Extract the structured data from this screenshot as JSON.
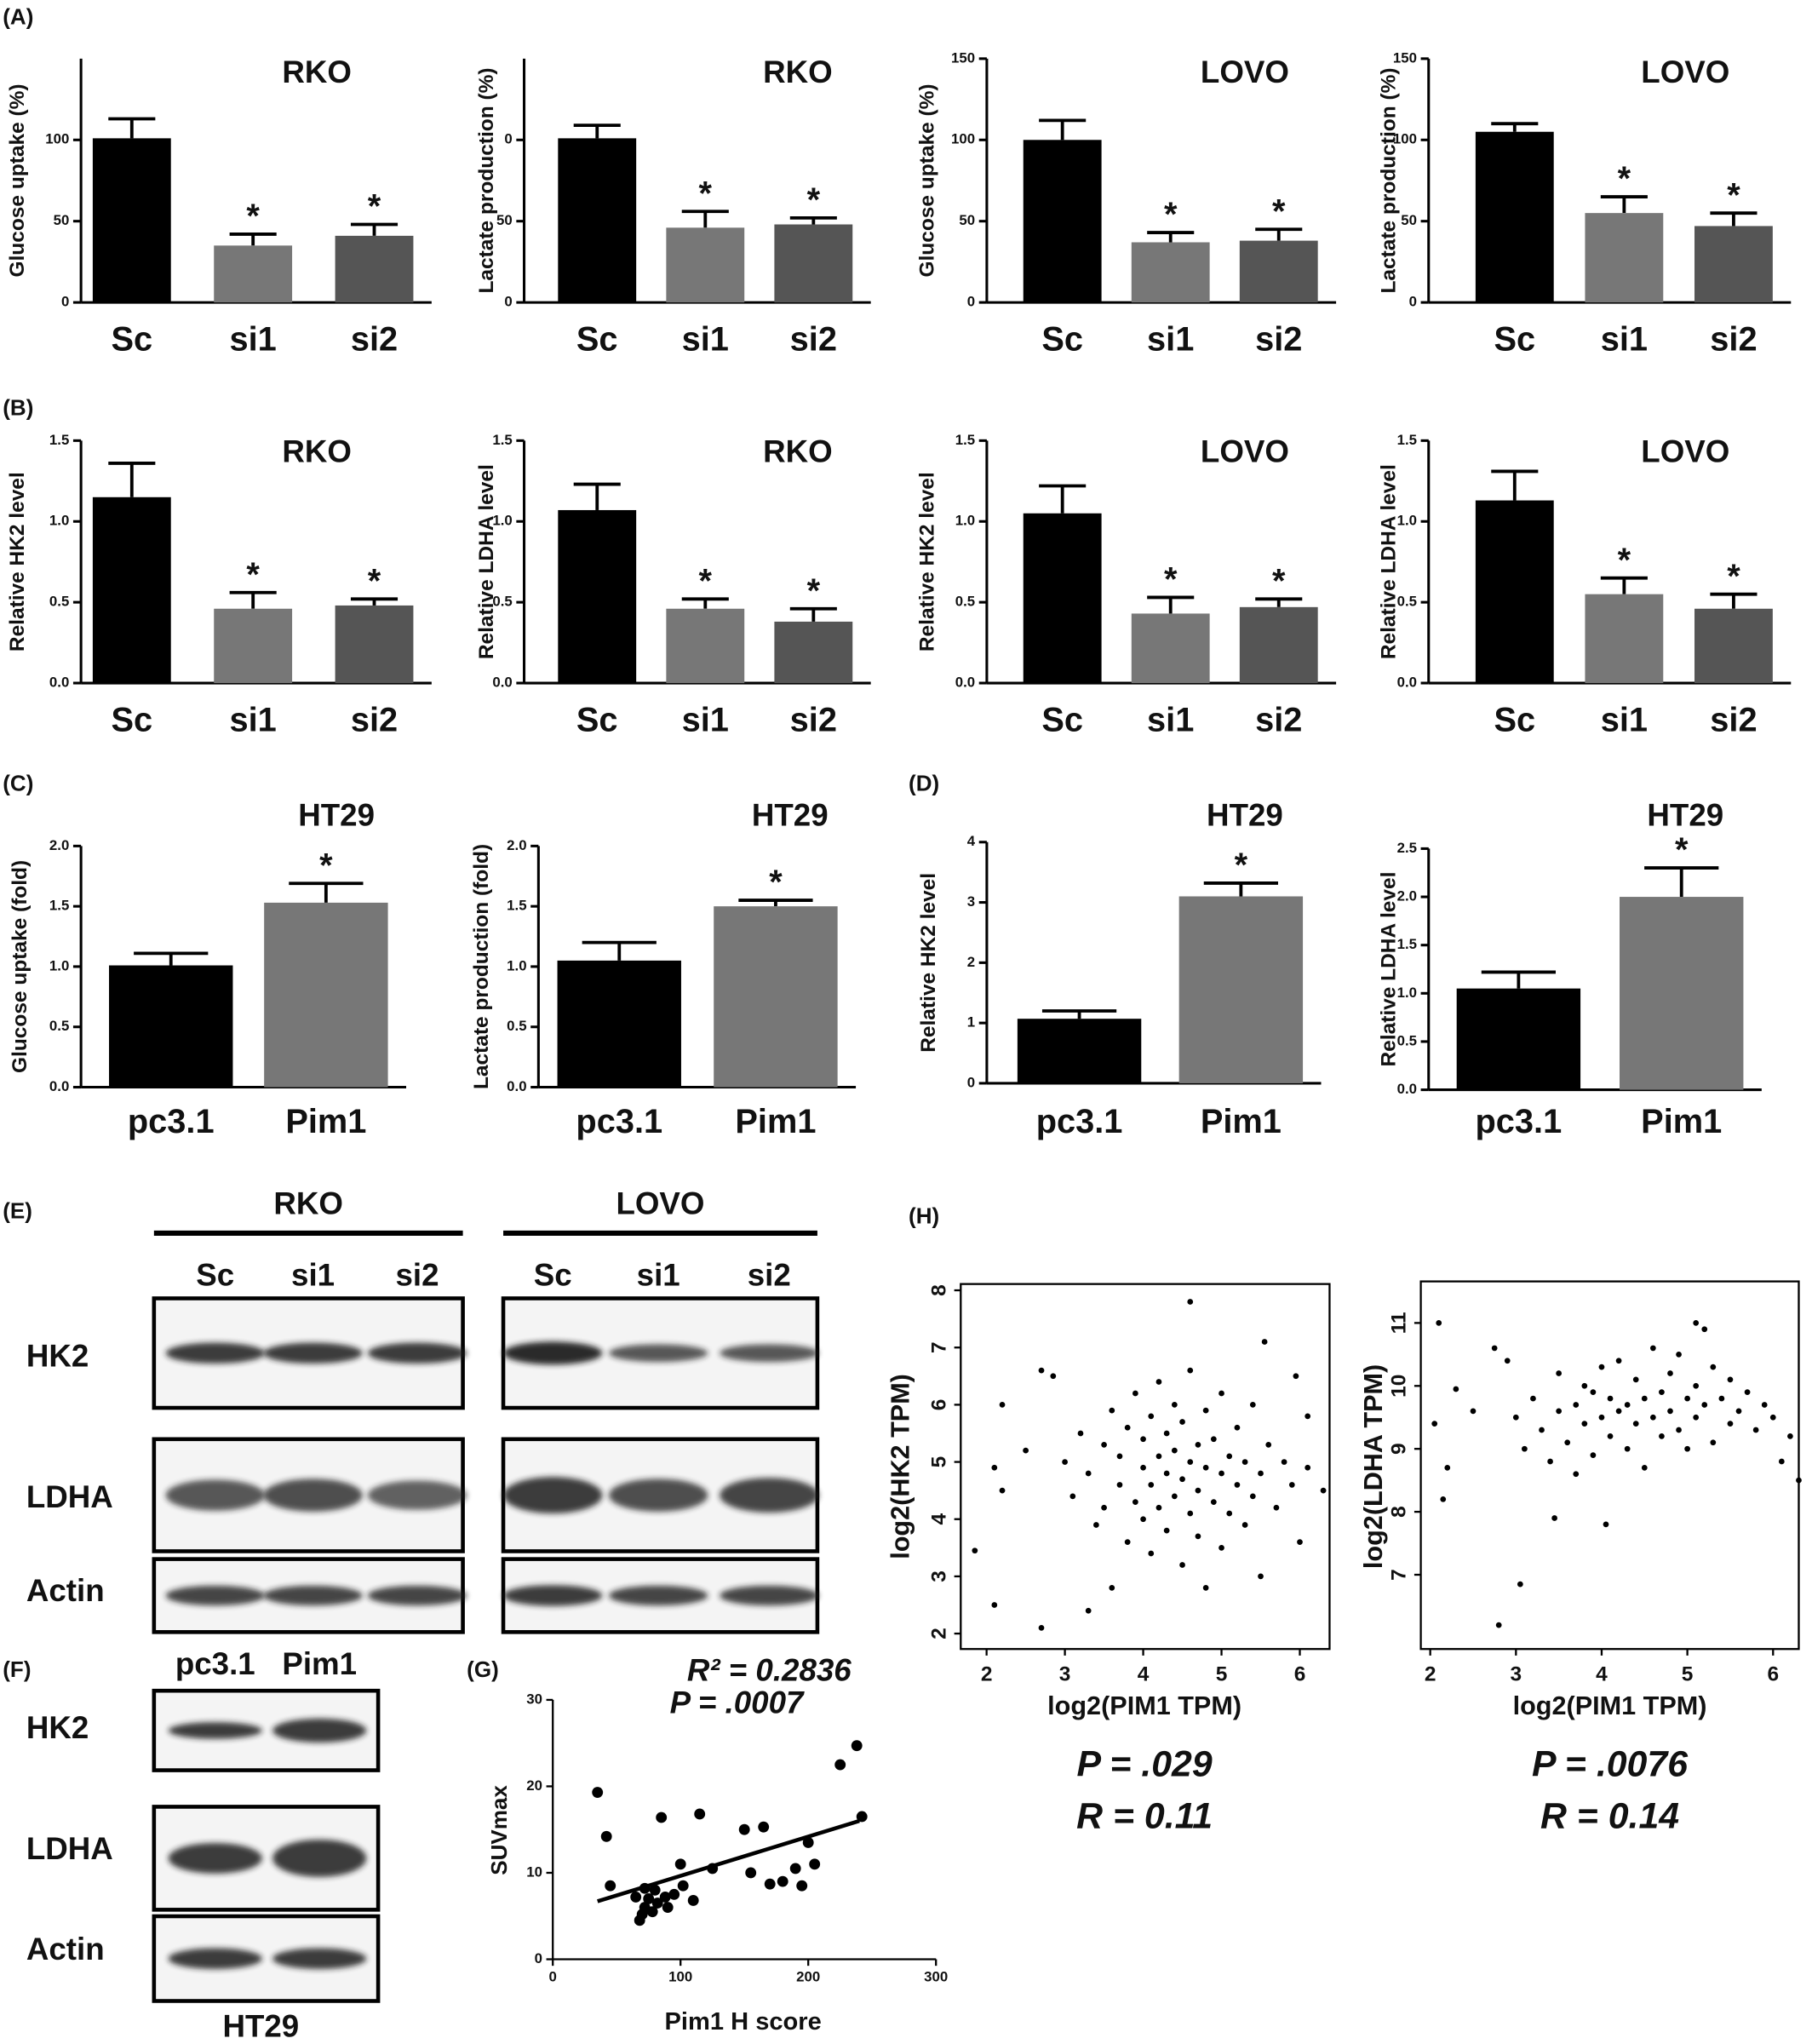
{
  "chart_data": [
    {
      "type": "bar",
      "panel": "(A)",
      "title": "RKO",
      "ylabel": "Glucose uptake (%)",
      "categories": [
        "Sc",
        "si1",
        "si2"
      ],
      "values": [
        101,
        35,
        41
      ],
      "errors": [
        12,
        7,
        7
      ],
      "annotations": [
        null,
        "*",
        "*"
      ],
      "colors": [
        "#000000",
        "#777777",
        "#555555"
      ],
      "ylim": [
        0,
        150
      ],
      "yticks": [
        0,
        50,
        100
      ]
    },
    {
      "type": "bar",
      "title": "RKO",
      "ylabel": "Lactate production (%)",
      "categories": [
        "Sc",
        "si1",
        "si2"
      ],
      "values": [
        101,
        46,
        48
      ],
      "errors": [
        8,
        10,
        4
      ],
      "annotations": [
        null,
        "*",
        "*"
      ],
      "colors": [
        "#000000",
        "#777777",
        "#555555"
      ],
      "ylim": [
        0,
        150
      ],
      "yticks": [
        0,
        50,
        {
          "value": 100,
          "label": "0"
        }
      ]
    },
    {
      "type": "bar",
      "title": "LOVO",
      "ylabel": "Glucose uptake (%)",
      "categories": [
        "Sc",
        "si1",
        "si2"
      ],
      "values": [
        100,
        37,
        38
      ],
      "errors": [
        12,
        6,
        7
      ],
      "annotations": [
        null,
        "*",
        "*"
      ],
      "colors": [
        "#000000",
        "#777777",
        "#555555"
      ],
      "ylim": [
        0,
        150
      ],
      "yticks": [
        0,
        50,
        100,
        150
      ]
    },
    {
      "type": "bar",
      "title": "LOVO",
      "ylabel": "Lactate production (%)",
      "categories": [
        "Sc",
        "si1",
        "si2"
      ],
      "values": [
        105,
        55,
        47
      ],
      "errors": [
        5,
        10,
        8
      ],
      "annotations": [
        null,
        "*",
        "*"
      ],
      "colors": [
        "#000000",
        "#777777",
        "#555555"
      ],
      "ylim": [
        0,
        150
      ],
      "yticks": [
        0,
        50,
        100,
        150
      ]
    },
    {
      "type": "bar",
      "panel": "(B)",
      "title": "RKO",
      "ylabel": "Relative HK2 level",
      "categories": [
        "Sc",
        "si1",
        "si2"
      ],
      "values": [
        1.15,
        0.46,
        0.48
      ],
      "errors": [
        0.21,
        0.1,
        0.04
      ],
      "annotations": [
        null,
        "*",
        "*"
      ],
      "colors": [
        "#000000",
        "#777777",
        "#555555"
      ],
      "ylim": [
        0,
        1.5
      ],
      "yticks": [
        {
          "value": 0,
          "label": "0.0"
        },
        0.5,
        {
          "value": 1,
          "label": "1.0"
        },
        1.5
      ]
    },
    {
      "type": "bar",
      "title": "RKO",
      "ylabel": "Relative LDHA level",
      "categories": [
        "Sc",
        "si1",
        "si2"
      ],
      "values": [
        1.07,
        0.46,
        0.38
      ],
      "errors": [
        0.16,
        0.06,
        0.08
      ],
      "annotations": [
        null,
        "*",
        "*"
      ],
      "colors": [
        "#000000",
        "#777777",
        "#555555"
      ],
      "ylim": [
        0,
        1.5
      ],
      "yticks": [
        {
          "value": 0,
          "label": "0.0"
        },
        0.5,
        {
          "value": 1,
          "label": "1.0"
        },
        1.5
      ]
    },
    {
      "type": "bar",
      "title": "LOVO",
      "ylabel": "Relative HK2 level",
      "categories": [
        "Sc",
        "si1",
        "si2"
      ],
      "values": [
        1.05,
        0.43,
        0.47
      ],
      "errors": [
        0.17,
        0.1,
        0.05
      ],
      "annotations": [
        null,
        "*",
        "*"
      ],
      "colors": [
        "#000000",
        "#777777",
        "#555555"
      ],
      "ylim": [
        0,
        1.5
      ],
      "yticks": [
        {
          "value": 0,
          "label": "0.0"
        },
        0.5,
        {
          "value": 1,
          "label": "1.0"
        },
        1.5
      ]
    },
    {
      "type": "bar",
      "title": "LOVO",
      "ylabel": "Relative LDHA level",
      "categories": [
        "Sc",
        "si1",
        "si2"
      ],
      "values": [
        1.13,
        0.55,
        0.46
      ],
      "errors": [
        0.18,
        0.1,
        0.09
      ],
      "annotations": [
        null,
        "*",
        "*"
      ],
      "colors": [
        "#000000",
        "#777777",
        "#555555"
      ],
      "ylim": [
        0,
        1.5
      ],
      "yticks": [
        {
          "value": 0,
          "label": "0.0"
        },
        0.5,
        {
          "value": 1,
          "label": "1.0"
        },
        1.5
      ]
    },
    {
      "type": "bar",
      "panel": "(C)",
      "title": "HT29",
      "ylabel": "Glucose uptake (fold)",
      "categories": [
        "pc3.1",
        "Pim1"
      ],
      "values": [
        1.01,
        1.53
      ],
      "errors": [
        0.1,
        0.16
      ],
      "annotations": [
        null,
        "*"
      ],
      "colors": [
        "#000000",
        "#777777"
      ],
      "ylim": [
        0,
        2
      ],
      "yticks": [
        {
          "value": 0,
          "label": "0.0"
        },
        0.5,
        {
          "value": 1,
          "label": "1.0"
        },
        1.5,
        {
          "value": 2,
          "label": "2.0"
        }
      ]
    },
    {
      "type": "bar",
      "title": "HT29",
      "ylabel": "Lactate production (fold)",
      "categories": [
        "pc3.1",
        "Pim1"
      ],
      "values": [
        1.05,
        1.5
      ],
      "errors": [
        0.15,
        0.05
      ],
      "annotations": [
        null,
        "*"
      ],
      "colors": [
        "#000000",
        "#777777"
      ],
      "ylim": [
        0,
        2
      ],
      "yticks": [
        {
          "value": 0,
          "label": "0.0"
        },
        0.5,
        {
          "value": 1,
          "label": "1.0"
        },
        1.5,
        {
          "value": 2,
          "label": "2.0"
        }
      ]
    },
    {
      "type": "bar",
      "panel": "(D)",
      "title": "HT29",
      "ylabel": "Relative HK2 level",
      "categories": [
        "pc3.1",
        "Pim1"
      ],
      "values": [
        1.07,
        3.1
      ],
      "errors": [
        0.13,
        0.22
      ],
      "annotations": [
        null,
        "*"
      ],
      "colors": [
        "#000000",
        "#777777"
      ],
      "ylim": [
        0,
        4
      ],
      "yticks": [
        0,
        1,
        2,
        3,
        4
      ]
    },
    {
      "type": "bar",
      "title": "HT29",
      "ylabel": "Relative LDHA level",
      "categories": [
        "pc3.1",
        "Pim1"
      ],
      "values": [
        1.05,
        2.0
      ],
      "errors": [
        0.17,
        0.3
      ],
      "annotations": [
        null,
        "*"
      ],
      "colors": [
        "#000000",
        "#777777"
      ],
      "ylim": [
        0,
        2.5
      ],
      "yticks": [
        {
          "value": 0,
          "label": "0.0"
        },
        0.5,
        {
          "value": 1,
          "label": "1.0"
        },
        1.5,
        {
          "value": 2,
          "label": "2.0"
        },
        2.5
      ]
    },
    {
      "type": "scatter",
      "panel": "(G)",
      "xlabel": "Pim1 H score",
      "ylabel": "SUVmax",
      "annotations": [
        "R² = 0.2836",
        "P = .0007"
      ],
      "color": "#000000",
      "x": [
        35,
        42,
        45,
        68,
        70,
        72,
        75,
        78,
        80,
        82,
        85,
        88,
        90,
        95,
        100,
        102,
        110,
        115,
        125,
        150,
        155,
        165,
        170,
        180,
        190,
        195,
        200,
        205,
        225,
        238,
        242,
        72,
        65
      ],
      "values": [
        19.3,
        14.2,
        8.5,
        4.5,
        5.2,
        6,
        7,
        5.5,
        8,
        6.5,
        16.4,
        7.2,
        6,
        7.5,
        11,
        8.5,
        6.8,
        16.8,
        10.5,
        15,
        10,
        15.3,
        8.7,
        9,
        10.5,
        8.5,
        13.5,
        11,
        22.5,
        24.7,
        16.5,
        8.2,
        7.2
      ],
      "fit_line": {
        "x": [
          35,
          240
        ],
        "values": [
          6.7,
          16
        ]
      },
      "xlim": [
        0,
        300
      ],
      "xticks": [
        0,
        100,
        200,
        300
      ],
      "ylim": [
        0,
        30
      ],
      "yticks": [
        0,
        10,
        20,
        30
      ]
    },
    {
      "type": "scatter",
      "panel": "(H)",
      "xlabel": "log2(PIM1 TPM)",
      "ylabel": "log2(HK2 TPM)",
      "annotations": [
        "P = .029",
        "R = 0.11"
      ],
      "color": "#000000",
      "x": [
        1.85,
        2.1,
        2.7,
        3.3,
        2.1,
        2.2,
        2.7,
        2.85,
        4.6,
        5.55,
        5.5,
        4.8,
        6.3,
        5.95,
        3.6,
        2.2,
        2.5,
        6.1,
        3.0,
        3.1,
        3.2,
        3.3,
        3.4,
        3.5,
        3.5,
        3.6,
        3.7,
        3.7,
        3.8,
        3.8,
        3.9,
        3.9,
        4.0,
        4.0,
        4.0,
        4.1,
        4.1,
        4.1,
        4.2,
        4.2,
        4.2,
        4.3,
        4.3,
        4.3,
        4.4,
        4.4,
        4.4,
        4.5,
        4.5,
        4.5,
        4.6,
        4.6,
        4.6,
        4.7,
        4.7,
        4.7,
        4.8,
        4.8,
        4.9,
        4.9,
        5.0,
        5.0,
        5.0,
        5.1,
        5.1,
        5.2,
        5.2,
        5.3,
        5.3,
        5.4,
        5.4,
        5.5,
        5.6,
        5.7,
        5.8,
        5.9,
        6.0,
        6.1
      ],
      "values": [
        3.45,
        2.5,
        2.1,
        2.4,
        4.9,
        6,
        6.6,
        6.5,
        7.8,
        7.1,
        3.0,
        2.8,
        4.5,
        6.5,
        2.8,
        4.5,
        5.2,
        5.8,
        5.0,
        4.4,
        5.5,
        4.8,
        3.9,
        5.3,
        4.2,
        5.9,
        4.6,
        5.1,
        3.6,
        5.6,
        4.3,
        6.2,
        4.9,
        4.0,
        5.4,
        3.4,
        4.6,
        5.8,
        5.1,
        4.2,
        6.4,
        3.8,
        4.8,
        5.5,
        4.4,
        5.2,
        6.0,
        3.2,
        4.7,
        5.7,
        4.1,
        5.0,
        6.6,
        4.5,
        5.3,
        3.7,
        4.9,
        5.9,
        4.3,
        5.4,
        3.5,
        4.8,
        6.2,
        4.1,
        5.1,
        4.6,
        5.6,
        3.9,
        5.0,
        4.4,
        6.0,
        4.8,
        5.3,
        4.2,
        5.0,
        4.6,
        3.6,
        4.9
      ],
      "xlim": [
        1.67,
        6.38
      ],
      "xticks": [
        2,
        3,
        4,
        5,
        6
      ],
      "ylim": [
        1.73,
        8.11
      ],
      "yticks": [
        2,
        3,
        4,
        5,
        6,
        7,
        8
      ]
    },
    {
      "type": "scatter",
      "xlabel": "log2(PIM1 TPM)",
      "ylabel": "log2(LDHA TPM)",
      "annotations": [
        "P =  .0076",
        "R = 0.14"
      ],
      "color": "#000000",
      "x": [
        2.1,
        2.05,
        2.15,
        2.2,
        2.3,
        2.8,
        3.05,
        3.45,
        4.05,
        2.75,
        5.1,
        5.2,
        6.3,
        6.1,
        2.5,
        2.9,
        3.0,
        3.1,
        3.2,
        3.3,
        3.4,
        3.5,
        3.5,
        3.6,
        3.7,
        3.7,
        3.8,
        3.8,
        3.9,
        3.9,
        4.0,
        4.0,
        4.1,
        4.1,
        4.2,
        4.2,
        4.3,
        4.3,
        4.4,
        4.4,
        4.5,
        4.5,
        4.6,
        4.6,
        4.7,
        4.7,
        4.8,
        4.8,
        4.9,
        4.9,
        5.0,
        5.0,
        5.1,
        5.1,
        5.2,
        5.3,
        5.3,
        5.4,
        5.5,
        5.5,
        5.6,
        5.7,
        5.8,
        5.9,
        6.0,
        6.2
      ],
      "values": [
        11.0,
        9.4,
        8.2,
        8.7,
        9.95,
        6.2,
        6.85,
        7.9,
        7.8,
        10.6,
        11.0,
        10.9,
        8.5,
        8.8,
        9.6,
        10.4,
        9.5,
        9.0,
        9.8,
        9.3,
        8.8,
        9.6,
        10.2,
        9.1,
        9.7,
        8.6,
        10.0,
        9.4,
        9.9,
        8.9,
        9.5,
        10.3,
        9.2,
        9.8,
        9.6,
        10.4,
        9.0,
        9.7,
        9.4,
        10.1,
        9.8,
        8.7,
        9.5,
        10.6,
        9.9,
        9.2,
        10.2,
        9.6,
        9.3,
        10.5,
        9.8,
        9.0,
        10.0,
        9.5,
        9.7,
        10.3,
        9.1,
        9.8,
        9.4,
        10.1,
        9.6,
        9.9,
        9.3,
        9.7,
        9.5,
        9.2
      ],
      "xlim": [
        1.89,
        6.3
      ],
      "xticks": [
        2,
        3,
        4,
        5,
        6
      ],
      "ylim": [
        5.82,
        11.66
      ],
      "yticks": [
        7,
        8,
        9,
        10,
        11
      ]
    }
  ],
  "blots": [
    {
      "panel": "(E)",
      "groups": [
        {
          "name": "RKO",
          "lanes": [
            "Sc",
            "si1",
            "si2"
          ]
        },
        {
          "name": "LOVO",
          "lanes": [
            "Sc",
            "si1",
            "si2"
          ]
        }
      ],
      "rows": [
        "HK2",
        "LDHA",
        "Actin"
      ]
    },
    {
      "panel": "(F)",
      "lanes": [
        "pc3.1",
        "Pim1"
      ],
      "rows": [
        "HK2",
        "LDHA",
        "Actin"
      ],
      "caption": "HT29"
    }
  ]
}
